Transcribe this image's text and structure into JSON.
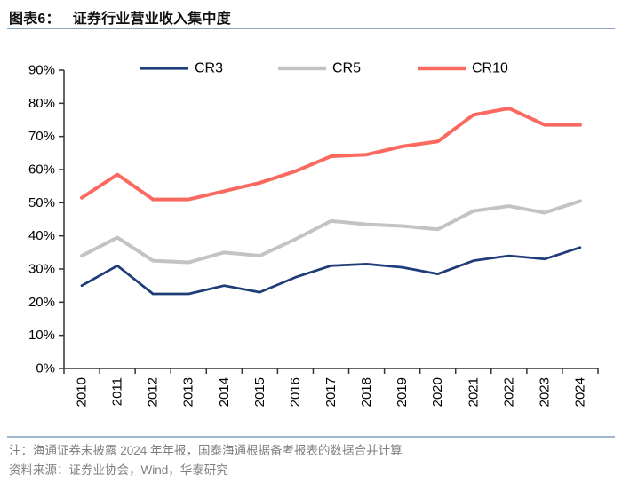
{
  "header": {
    "figure_label": "图表6：",
    "title": "证券行业营业收入集中度"
  },
  "chart_data": {
    "type": "line",
    "title": "证券行业营业收入集中度",
    "categories": [
      "2010",
      "2011",
      "2012",
      "2013",
      "2014",
      "2015",
      "2016",
      "2017",
      "2018",
      "2019",
      "2020",
      "2021",
      "2022",
      "2023",
      "2024"
    ],
    "series": [
      {
        "name": "CR3",
        "color": "#1e3d78",
        "stroke_width": 2.75,
        "values": [
          25,
          31,
          22.5,
          22.5,
          25,
          23,
          27.5,
          31,
          31.5,
          30.5,
          28.5,
          32.5,
          34,
          33,
          36.5
        ]
      },
      {
        "name": "CR5",
        "color": "#c3c3c3",
        "stroke_width": 4,
        "values": [
          34,
          39.5,
          32.5,
          32,
          35,
          34,
          39,
          44.5,
          43.5,
          43,
          42,
          47.5,
          49,
          47,
          50.5
        ]
      },
      {
        "name": "CR10",
        "color": "#fa6a60",
        "stroke_width": 4,
        "values": [
          51.5,
          58.5,
          51,
          51,
          53.5,
          56,
          59.5,
          64,
          64.5,
          67,
          68.5,
          76.5,
          78.5,
          73.5,
          73.5
        ]
      }
    ],
    "ylim": [
      0,
      90
    ],
    "ytick_step": 10,
    "ytick_suffix": "%",
    "xlabel": "",
    "ylabel": "",
    "grid": false,
    "legend_position": "top",
    "x_label_rotation": -90
  },
  "footnotes": {
    "note": "注：海通证券未披露 2024 年年报，国泰海通根据备考报表的数据合并计算",
    "source": "资料来源：证券业协会，Wind，华泰研究"
  },
  "style": {
    "axis_color": "#333333",
    "tick_label_color": "#000000",
    "accent_rule_color": "#87a5c1",
    "footer_rule_color": "#9fb6cb",
    "footnote_color": "#7f7f7f"
  }
}
